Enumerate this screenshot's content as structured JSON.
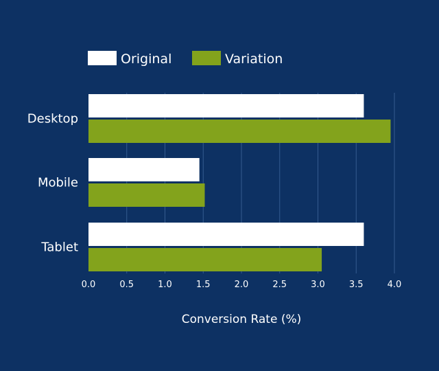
{
  "chart_data": {
    "type": "bar",
    "orientation": "horizontal",
    "categories": [
      "Desktop",
      "Mobile",
      "Tablet"
    ],
    "series": [
      {
        "name": "Original",
        "values": [
          3.6,
          1.45,
          3.6
        ],
        "color": "#ffffff"
      },
      {
        "name": "Variation",
        "values": [
          3.95,
          1.52,
          3.05
        ],
        "color": "#83a31c"
      }
    ],
    "xlabel": "Conversion Rate (%)",
    "ylabel": "",
    "xlim": [
      0,
      4.0
    ],
    "xticks": [
      "0.0",
      "0.5",
      "1.0",
      "1.5",
      "2.0",
      "2.5",
      "3.0",
      "3.5",
      "4.0"
    ],
    "grid": "vertical",
    "legend_position": "top-left",
    "background": "#0d3163"
  }
}
